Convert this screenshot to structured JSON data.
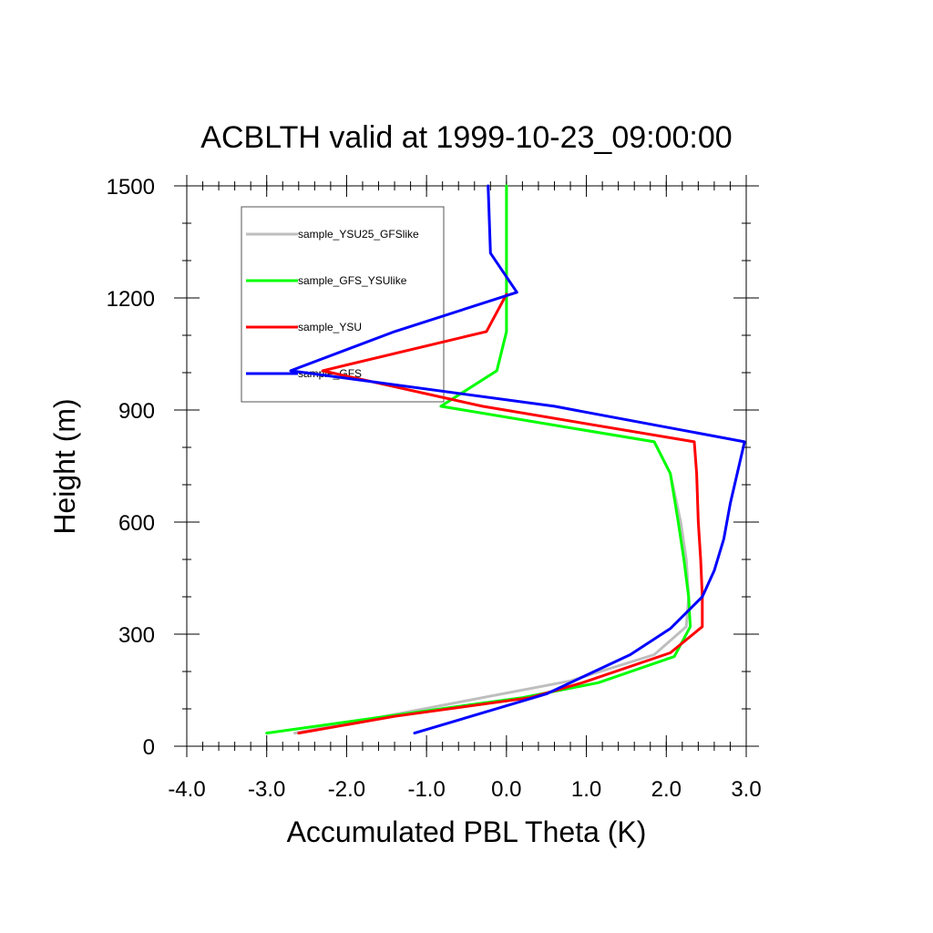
{
  "chart_data": {
    "type": "line",
    "title": "ACBLTH valid at 1999-10-23_09:00:00",
    "xlabel": "Accumulated PBL Theta (K)",
    "ylabel": "Height (m)",
    "xlim": [
      -4.0,
      3.0
    ],
    "ylim": [
      0,
      1500
    ],
    "xticks": [
      -4.0,
      -3.0,
      -2.0,
      -1.0,
      0.0,
      1.0,
      2.0,
      3.0
    ],
    "xtick_labels": [
      "-4.0",
      "-3.0",
      "-2.0",
      "-1.0",
      "0.0",
      "1.0",
      "2.0",
      "3.0"
    ],
    "yticks": [
      0,
      300,
      600,
      900,
      1200,
      1500
    ],
    "ytick_labels": [
      "0",
      "300",
      "600",
      "900",
      "1200",
      "1500"
    ],
    "x_minor_step": 0.2,
    "y_minor_step": 100,
    "grid": false,
    "legend_position": "top-left",
    "series": [
      {
        "name": "sample_YSU25_GFSlike",
        "color": "#bebebe",
        "x": [
          -2.65,
          -1.4,
          -0.3,
          0.8,
          1.85,
          2.25,
          2.28,
          2.25,
          2.18,
          2.05,
          1.85,
          -0.82,
          -0.12,
          0.0,
          0.0,
          0.0
        ],
        "y": [
          35,
          85,
          130,
          175,
          245,
          320,
          400,
          500,
          600,
          730,
          815,
          910,
          1005,
          1110,
          1300,
          1500
        ]
      },
      {
        "name": "sample_GFS_YSUlike",
        "color": "#00ff00",
        "x": [
          -3.0,
          -1.5,
          0.2,
          1.15,
          2.1,
          2.3,
          2.28,
          2.22,
          2.15,
          2.05,
          1.85,
          -0.82,
          -0.12,
          0.0,
          0.0,
          0.0
        ],
        "y": [
          35,
          80,
          130,
          170,
          240,
          320,
          400,
          500,
          600,
          730,
          815,
          910,
          1005,
          1110,
          1300,
          1500
        ]
      },
      {
        "name": "sample_YSU",
        "color": "#ff0000",
        "x": [
          -2.6,
          -1.4,
          0.3,
          0.95,
          2.05,
          2.45,
          2.45,
          2.43,
          2.4,
          2.38,
          2.35,
          -0.3,
          -2.3,
          -0.25,
          0.0
        ],
        "y": [
          35,
          80,
          130,
          170,
          250,
          320,
          400,
          500,
          600,
          730,
          815,
          910,
          1005,
          1110,
          1210
        ]
      },
      {
        "name": "sample_GFS",
        "color": "#0000ff",
        "x": [
          -1.15,
          0.5,
          1.55,
          2.05,
          2.45,
          2.6,
          2.72,
          2.8,
          2.98,
          0.6,
          -2.7,
          -1.4,
          0.13,
          -0.2,
          -0.22,
          -0.23
        ],
        "y": [
          35,
          140,
          245,
          315,
          400,
          470,
          555,
          650,
          815,
          910,
          1005,
          1110,
          1215,
          1320,
          1440,
          1500
        ]
      }
    ]
  }
}
